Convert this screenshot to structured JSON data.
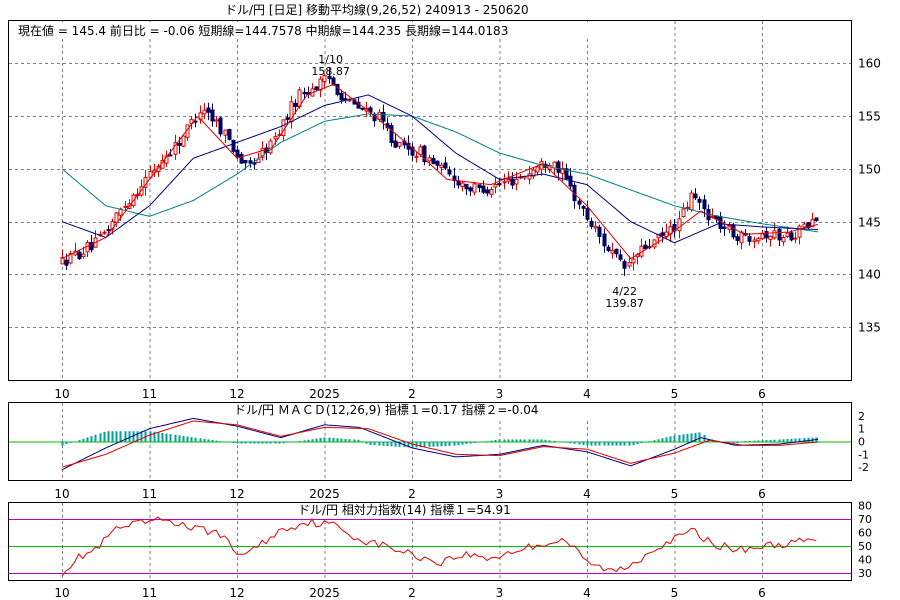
{
  "header": {
    "title": "ドル/円 [日足]  移動平均線(9,26,52)  240913 - 250620",
    "info": "現在値 = 145.4  前日比 = -0.06   短期線=144.7578   中期線=144.235   長期線=144.0183"
  },
  "colors": {
    "up": "#e00000",
    "down": "#000060",
    "short_ma": "#e00000",
    "mid_ma": "#000080",
    "long_ma": "#008080",
    "macd": "#000080",
    "signal": "#e00000",
    "hist": "#00a0a0",
    "zero": "#00c000",
    "rsi": "#e00000",
    "rsi_band": "#c000c0",
    "rsi_mid": "#00c000",
    "grid": "#808080"
  },
  "x_months": [
    "10",
    "11",
    "12",
    "2025",
    "2",
    "3",
    "4",
    "5",
    "6"
  ],
  "chart_data": [
    {
      "type": "candlestick",
      "title": "ドル/円 [日足]  移動平均線(9,26,52)  240913 - 250620",
      "ylim": [
        130,
        164
      ],
      "yticks": [
        "135",
        "140",
        "145",
        "150",
        "155",
        "160"
      ],
      "anchors": [
        {
          "m": 0.0,
          "v": 141.2
        },
        {
          "m": 0.4,
          "v": 143.0
        },
        {
          "m": 0.7,
          "v": 146.5
        },
        {
          "m": 1.0,
          "v": 149.5
        },
        {
          "m": 1.35,
          "v": 152.8
        },
        {
          "m": 1.6,
          "v": 156.0
        },
        {
          "m": 1.85,
          "v": 153.5
        },
        {
          "m": 2.1,
          "v": 150.0
        },
        {
          "m": 2.4,
          "v": 152.5
        },
        {
          "m": 2.7,
          "v": 157.0
        },
        {
          "m": 3.05,
          "v": 158.5
        },
        {
          "m": 3.3,
          "v": 156.0
        },
        {
          "m": 3.6,
          "v": 155.0
        },
        {
          "m": 3.85,
          "v": 152.0
        },
        {
          "m": 4.1,
          "v": 151.5
        },
        {
          "m": 4.4,
          "v": 149.5
        },
        {
          "m": 4.7,
          "v": 148.0
        },
        {
          "m": 5.0,
          "v": 148.5
        },
        {
          "m": 5.3,
          "v": 149.5
        },
        {
          "m": 5.6,
          "v": 151.0
        },
        {
          "m": 5.75,
          "v": 149.0
        },
        {
          "m": 5.95,
          "v": 146.0
        },
        {
          "m": 6.15,
          "v": 143.5
        },
        {
          "m": 6.42,
          "v": 140.5
        },
        {
          "m": 6.65,
          "v": 142.5
        },
        {
          "m": 6.85,
          "v": 143.5
        },
        {
          "m": 7.05,
          "v": 145.0
        },
        {
          "m": 7.2,
          "v": 147.5
        },
        {
          "m": 7.35,
          "v": 146.0
        },
        {
          "m": 7.55,
          "v": 144.5
        },
        {
          "m": 7.75,
          "v": 143.5
        },
        {
          "m": 8.0,
          "v": 144.0
        },
        {
          "m": 8.25,
          "v": 143.5
        },
        {
          "m": 8.5,
          "v": 144.5
        },
        {
          "m": 8.65,
          "v": 145.4
        }
      ],
      "short_ma": [
        {
          "m": 0.0,
          "v": 141.5
        },
        {
          "m": 0.5,
          "v": 143.5
        },
        {
          "m": 1.0,
          "v": 149.0
        },
        {
          "m": 1.55,
          "v": 155.0
        },
        {
          "m": 2.0,
          "v": 151.0
        },
        {
          "m": 2.4,
          "v": 152.0
        },
        {
          "m": 2.8,
          "v": 157.0
        },
        {
          "m": 3.1,
          "v": 158.0
        },
        {
          "m": 3.5,
          "v": 155.5
        },
        {
          "m": 4.0,
          "v": 152.0
        },
        {
          "m": 4.4,
          "v": 149.0
        },
        {
          "m": 4.9,
          "v": 148.5
        },
        {
          "m": 5.5,
          "v": 150.5
        },
        {
          "m": 6.0,
          "v": 146.5
        },
        {
          "m": 6.5,
          "v": 141.5
        },
        {
          "m": 6.9,
          "v": 143.5
        },
        {
          "m": 7.3,
          "v": 146.0
        },
        {
          "m": 7.8,
          "v": 143.8
        },
        {
          "m": 8.3,
          "v": 144.0
        },
        {
          "m": 8.65,
          "v": 144.76
        }
      ],
      "mid_ma": [
        {
          "m": 0.0,
          "v": 145.0
        },
        {
          "m": 0.5,
          "v": 143.5
        },
        {
          "m": 1.0,
          "v": 146.5
        },
        {
          "m": 1.5,
          "v": 151.0
        },
        {
          "m": 2.0,
          "v": 152.5
        },
        {
          "m": 2.5,
          "v": 154.0
        },
        {
          "m": 3.0,
          "v": 156.0
        },
        {
          "m": 3.5,
          "v": 157.0
        },
        {
          "m": 4.0,
          "v": 155.0
        },
        {
          "m": 4.5,
          "v": 151.5
        },
        {
          "m": 5.0,
          "v": 149.0
        },
        {
          "m": 5.5,
          "v": 149.5
        },
        {
          "m": 6.0,
          "v": 148.5
        },
        {
          "m": 6.5,
          "v": 145.0
        },
        {
          "m": 7.0,
          "v": 143.0
        },
        {
          "m": 7.5,
          "v": 144.8
        },
        {
          "m": 8.0,
          "v": 144.5
        },
        {
          "m": 8.65,
          "v": 144.24
        }
      ],
      "long_ma": [
        {
          "m": 0.0,
          "v": 150.0
        },
        {
          "m": 0.5,
          "v": 146.5
        },
        {
          "m": 1.0,
          "v": 145.5
        },
        {
          "m": 1.5,
          "v": 147.0
        },
        {
          "m": 2.0,
          "v": 149.5
        },
        {
          "m": 2.5,
          "v": 152.5
        },
        {
          "m": 3.0,
          "v": 154.5
        },
        {
          "m": 3.5,
          "v": 155.2
        },
        {
          "m": 4.0,
          "v": 155.0
        },
        {
          "m": 4.5,
          "v": 153.5
        },
        {
          "m": 5.0,
          "v": 151.5
        },
        {
          "m": 5.5,
          "v": 150.3
        },
        {
          "m": 6.0,
          "v": 149.5
        },
        {
          "m": 6.5,
          "v": 148.0
        },
        {
          "m": 7.0,
          "v": 146.5
        },
        {
          "m": 7.5,
          "v": 145.5
        },
        {
          "m": 8.0,
          "v": 144.8
        },
        {
          "m": 8.65,
          "v": 144.02
        }
      ],
      "annotations": [
        {
          "m": 3.07,
          "date": "1/10",
          "price": "158.87",
          "pos": "above"
        },
        {
          "m": 6.43,
          "date": "4/22",
          "price": "139.87",
          "pos": "below"
        }
      ]
    },
    {
      "type": "macd",
      "title": "ドル/円    ＭＡＣＤ(12,26,9)  指標１=0.17   指標２=-0.04",
      "ylim": [
        -3,
        3
      ],
      "yticks": [
        "2",
        "1",
        "0",
        "-1",
        "-2"
      ],
      "macd": [
        {
          "m": 0.0,
          "v": -2.2
        },
        {
          "m": 0.5,
          "v": -0.5
        },
        {
          "m": 1.0,
          "v": 1.0
        },
        {
          "m": 1.5,
          "v": 1.8
        },
        {
          "m": 2.0,
          "v": 1.2
        },
        {
          "m": 2.5,
          "v": 0.3
        },
        {
          "m": 3.0,
          "v": 1.3
        },
        {
          "m": 3.4,
          "v": 1.1
        },
        {
          "m": 4.0,
          "v": -0.5
        },
        {
          "m": 4.5,
          "v": -1.2
        },
        {
          "m": 5.0,
          "v": -1.0
        },
        {
          "m": 5.5,
          "v": -0.3
        },
        {
          "m": 6.0,
          "v": -0.8
        },
        {
          "m": 6.5,
          "v": -1.9
        },
        {
          "m": 7.0,
          "v": -0.6
        },
        {
          "m": 7.3,
          "v": 0.3
        },
        {
          "m": 7.7,
          "v": -0.3
        },
        {
          "m": 8.2,
          "v": -0.2
        },
        {
          "m": 8.65,
          "v": 0.17
        }
      ],
      "signal": [
        {
          "m": 0.0,
          "v": -2.0
        },
        {
          "m": 0.5,
          "v": -1.0
        },
        {
          "m": 1.0,
          "v": 0.5
        },
        {
          "m": 1.5,
          "v": 1.6
        },
        {
          "m": 2.0,
          "v": 1.3
        },
        {
          "m": 2.5,
          "v": 0.4
        },
        {
          "m": 3.0,
          "v": 1.1
        },
        {
          "m": 3.5,
          "v": 1.0
        },
        {
          "m": 4.0,
          "v": -0.2
        },
        {
          "m": 4.5,
          "v": -1.0
        },
        {
          "m": 5.0,
          "v": -1.1
        },
        {
          "m": 5.5,
          "v": -0.4
        },
        {
          "m": 6.0,
          "v": -0.6
        },
        {
          "m": 6.5,
          "v": -1.7
        },
        {
          "m": 7.0,
          "v": -0.9
        },
        {
          "m": 7.4,
          "v": 0.1
        },
        {
          "m": 7.8,
          "v": -0.3
        },
        {
          "m": 8.2,
          "v": -0.3
        },
        {
          "m": 8.65,
          "v": -0.04
        }
      ]
    },
    {
      "type": "rsi",
      "title": "ドル/円    相対力指数(14) 指標１=54.91",
      "ylim": [
        25,
        82
      ],
      "yticks": [
        "80",
        "70",
        "60",
        "50",
        "40",
        "30"
      ],
      "bands": [
        70,
        50,
        30
      ],
      "rsi": [
        {
          "m": 0.0,
          "v": 31
        },
        {
          "m": 0.2,
          "v": 42
        },
        {
          "m": 0.4,
          "v": 48
        },
        {
          "m": 0.6,
          "v": 62
        },
        {
          "m": 0.9,
          "v": 67
        },
        {
          "m": 1.2,
          "v": 70
        },
        {
          "m": 1.5,
          "v": 63
        },
        {
          "m": 1.8,
          "v": 60
        },
        {
          "m": 2.0,
          "v": 44
        },
        {
          "m": 2.2,
          "v": 48
        },
        {
          "m": 2.5,
          "v": 62
        },
        {
          "m": 2.8,
          "v": 68
        },
        {
          "m": 3.1,
          "v": 66
        },
        {
          "m": 3.4,
          "v": 55
        },
        {
          "m": 3.7,
          "v": 50
        },
        {
          "m": 4.0,
          "v": 44
        },
        {
          "m": 4.3,
          "v": 38
        },
        {
          "m": 4.6,
          "v": 44
        },
        {
          "m": 4.9,
          "v": 41
        },
        {
          "m": 5.2,
          "v": 47
        },
        {
          "m": 5.5,
          "v": 52
        },
        {
          "m": 5.75,
          "v": 55
        },
        {
          "m": 6.0,
          "v": 38
        },
        {
          "m": 6.3,
          "v": 31
        },
        {
          "m": 6.5,
          "v": 36
        },
        {
          "m": 6.8,
          "v": 50
        },
        {
          "m": 7.0,
          "v": 55
        },
        {
          "m": 7.2,
          "v": 62
        },
        {
          "m": 7.4,
          "v": 53
        },
        {
          "m": 7.7,
          "v": 47
        },
        {
          "m": 8.0,
          "v": 50
        },
        {
          "m": 8.3,
          "v": 52
        },
        {
          "m": 8.65,
          "v": 54.91
        }
      ]
    }
  ]
}
